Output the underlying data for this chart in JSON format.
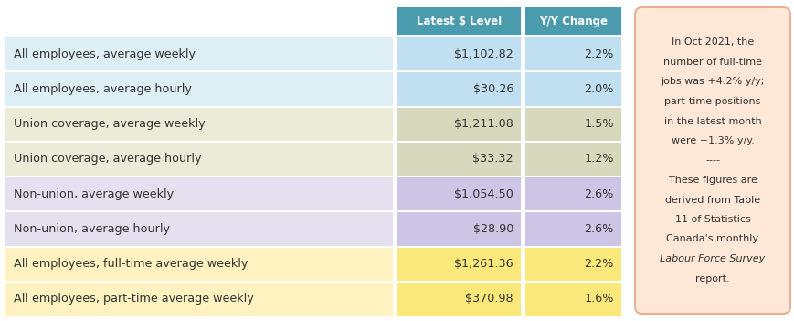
{
  "rows": [
    {
      "label": "All employees, average weekly",
      "value": "$1,102.82",
      "change": "2.2%",
      "bg": "#ddeef5",
      "val_bg": "#c0dff0",
      "chg_bg": "#c0dff0"
    },
    {
      "label": "All employees, average hourly",
      "value": "$30.26",
      "change": "2.0%",
      "bg": "#ddeef5",
      "val_bg": "#c0dff0",
      "chg_bg": "#c0dff0"
    },
    {
      "label": "Union coverage, average weekly",
      "value": "$1,211.08",
      "change": "1.5%",
      "bg": "#ebebd8",
      "val_bg": "#d8d8bc",
      "chg_bg": "#d8d8bc"
    },
    {
      "label": "Union coverage, average hourly",
      "value": "$33.32",
      "change": "1.2%",
      "bg": "#ebebd8",
      "val_bg": "#d8d8bc",
      "chg_bg": "#d8d8bc"
    },
    {
      "label": "Non-union, average weekly",
      "value": "$1,054.50",
      "change": "2.6%",
      "bg": "#e5e0f0",
      "val_bg": "#cdc5e5",
      "chg_bg": "#cdc5e5"
    },
    {
      "label": "Non-union, average hourly",
      "value": "$28.90",
      "change": "2.6%",
      "bg": "#e5e0f0",
      "val_bg": "#cdc5e5",
      "chg_bg": "#cdc5e5"
    },
    {
      "label": "All employees, full-time average weekly",
      "value": "$1,261.36",
      "change": "2.2%",
      "bg": "#fdf2c0",
      "val_bg": "#fae97a",
      "chg_bg": "#fae97a"
    },
    {
      "label": "All employees, part-time average weekly",
      "value": "$370.98",
      "change": "1.6%",
      "bg": "#fdf2c0",
      "val_bg": "#fae97a",
      "chg_bg": "#fae97a"
    }
  ],
  "header_labels": [
    "Latest $ Level",
    "Y/Y Change"
  ],
  "header_bg": "#4a9bad",
  "header_text": "#ffffff",
  "note_lines": [
    {
      "text": "In Oct 2021, the",
      "italic": false
    },
    {
      "text": "number of full-time",
      "italic": false
    },
    {
      "text": "jobs was +4.2% y/y;",
      "italic": false
    },
    {
      "text": "part-time positions",
      "italic": false
    },
    {
      "text": "in the latest month",
      "italic": false
    },
    {
      "text": "were +1.3% y/y.",
      "italic": false
    },
    {
      "text": "----",
      "italic": false
    },
    {
      "text": "These figures are",
      "italic": false
    },
    {
      "text": "derived from Table",
      "italic": false
    },
    {
      "text": "11 of Statistics",
      "italic": false
    },
    {
      "text": "Canada's monthly",
      "italic": false
    },
    {
      "text": "Labour Force Survey",
      "italic": true
    },
    {
      "text": "report.",
      "italic": false
    }
  ],
  "note_bg": "#fde8d8",
  "note_border": "#e8b090",
  "fig_bg": "#ffffff",
  "text_color": "#333333"
}
